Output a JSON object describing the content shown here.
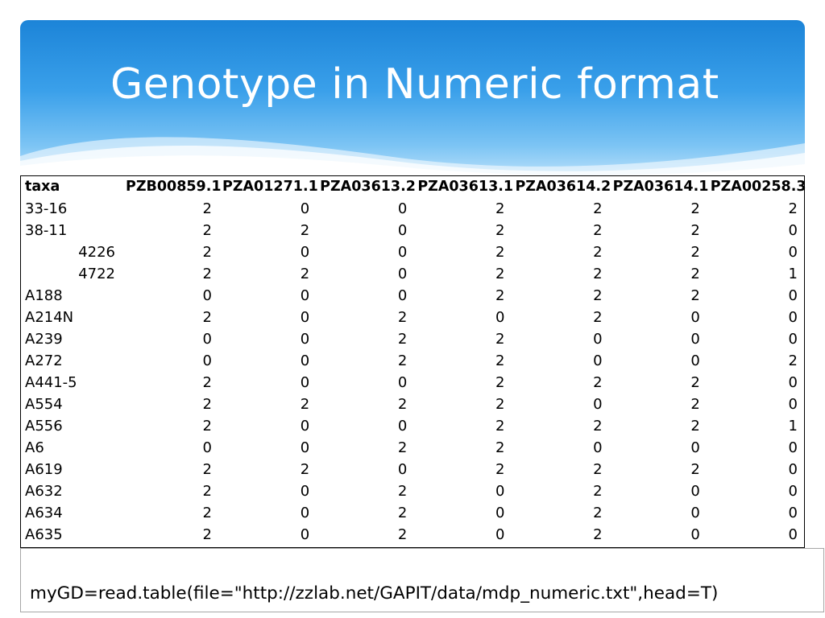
{
  "slide": {
    "title": "Genotype in Numeric format",
    "code": "myGD=read.table(file=\"http://zzlab.net/GAPIT/data/mdp_numeric.txt\",head=T)"
  },
  "table": {
    "headers": [
      "taxa",
      "PZB00859.1",
      "PZA01271.1",
      "PZA03613.2",
      "PZA03613.1",
      "PZA03614.2",
      "PZA03614.1",
      "PZA00258.3"
    ],
    "rows": [
      [
        "33-16",
        "2",
        "0",
        "0",
        "2",
        "2",
        "2",
        "2"
      ],
      [
        "38-11",
        "2",
        "2",
        "0",
        "2",
        "2",
        "2",
        "0"
      ],
      [
        "4226",
        "2",
        "0",
        "0",
        "2",
        "2",
        "2",
        "0"
      ],
      [
        "4722",
        "2",
        "2",
        "0",
        "2",
        "2",
        "2",
        "1"
      ],
      [
        "A188",
        "0",
        "0",
        "0",
        "2",
        "2",
        "2",
        "0"
      ],
      [
        "A214N",
        "2",
        "0",
        "2",
        "0",
        "2",
        "0",
        "0"
      ],
      [
        "A239",
        "0",
        "0",
        "2",
        "2",
        "0",
        "0",
        "0"
      ],
      [
        "A272",
        "0",
        "0",
        "2",
        "2",
        "0",
        "0",
        "2"
      ],
      [
        "A441-5",
        "2",
        "0",
        "0",
        "2",
        "2",
        "2",
        "0"
      ],
      [
        "A554",
        "2",
        "2",
        "2",
        "2",
        "0",
        "2",
        "0"
      ],
      [
        "A556",
        "2",
        "0",
        "0",
        "2",
        "2",
        "2",
        "1"
      ],
      [
        "A6",
        "0",
        "0",
        "2",
        "2",
        "0",
        "0",
        "0"
      ],
      [
        "A619",
        "2",
        "2",
        "0",
        "2",
        "2",
        "2",
        "0"
      ],
      [
        "A632",
        "2",
        "0",
        "2",
        "0",
        "2",
        "0",
        "0"
      ],
      [
        "A634",
        "2",
        "0",
        "2",
        "0",
        "2",
        "0",
        "0"
      ],
      [
        "A635",
        "2",
        "0",
        "2",
        "0",
        "2",
        "0",
        "0"
      ]
    ]
  }
}
